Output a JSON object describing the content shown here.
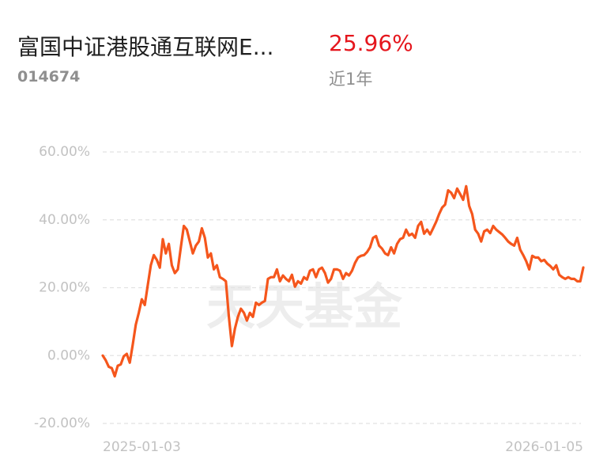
{
  "header": {
    "fund_name": "富国中证港股通互联网E...",
    "return_text": "25.96%",
    "fund_code": "014674",
    "period": "近1年"
  },
  "chart_data": {
    "type": "line",
    "watermark": "天天基金",
    "categories": [
      "2025-01-03",
      null,
      null,
      null,
      null,
      null,
      null,
      null,
      null,
      null,
      null,
      null,
      null,
      null,
      null,
      null,
      null,
      null,
      null,
      null,
      null,
      null,
      null,
      null,
      null,
      null,
      null,
      null,
      null,
      null,
      null,
      null,
      null,
      null,
      null,
      null,
      null,
      null,
      null,
      null,
      null,
      null,
      null,
      null,
      null,
      null,
      null,
      null,
      null,
      null,
      null,
      null,
      null,
      null,
      null,
      null,
      null,
      null,
      null,
      null,
      null,
      null,
      null,
      null,
      null,
      null,
      null,
      null,
      null,
      null,
      null,
      null,
      null,
      null,
      null,
      null,
      null,
      null,
      null,
      null,
      null,
      null,
      null,
      null,
      null,
      null,
      null,
      null,
      null,
      null,
      null,
      null,
      null,
      null,
      null,
      null,
      null,
      null,
      null,
      null,
      null,
      null,
      null,
      null,
      null,
      null,
      null,
      null,
      null,
      null,
      null,
      null,
      null,
      null,
      null,
      null,
      null,
      null,
      null,
      null,
      null,
      null,
      null,
      null,
      null,
      null,
      null,
      null,
      null,
      null,
      null,
      null,
      null,
      null,
      null,
      null,
      null,
      null,
      null,
      null,
      null,
      null,
      null,
      null,
      null,
      null,
      null,
      null,
      null,
      null,
      null,
      null,
      null,
      null,
      null,
      null,
      null,
      null,
      null,
      null,
      "2026-01-05"
    ],
    "series": [
      {
        "color": "#f5561c",
        "values": [
          0,
          -1.4,
          -3.3,
          -3.7,
          -6.1,
          -3.0,
          -2.6,
          -0.2,
          0.5,
          -2.1,
          3.3,
          9.1,
          12.6,
          16.6,
          14.9,
          20.8,
          26.6,
          29.6,
          28.2,
          25.9,
          34.3,
          30.1,
          32.9,
          26.6,
          24.3,
          25.4,
          31.9,
          38.2,
          37.1,
          33.6,
          30.1,
          32.4,
          33.6,
          37.5,
          34.7,
          28.9,
          30.1,
          25.4,
          26.6,
          23.1,
          22.6,
          21.9,
          11.4,
          2.8,
          7.9,
          11.4,
          13.8,
          12.6,
          10.3,
          12.6,
          11.4,
          15.6,
          14.9,
          15.6,
          16.1,
          22.6,
          23.1,
          23.1,
          25.4,
          21.9,
          23.6,
          22.6,
          21.9,
          23.8,
          20.3,
          21.9,
          21.2,
          23.1,
          22.4,
          25.0,
          25.4,
          23.1,
          25.4,
          25.9,
          24.3,
          21.5,
          22.6,
          25.4,
          25.4,
          25.0,
          22.6,
          24.3,
          23.6,
          25.0,
          27.3,
          28.9,
          29.4,
          29.6,
          30.5,
          31.9,
          34.7,
          35.2,
          32.4,
          31.5,
          30.1,
          29.6,
          31.9,
          30.1,
          32.9,
          34.3,
          34.7,
          37.1,
          35.4,
          35.9,
          34.7,
          38.2,
          39.4,
          35.9,
          37.1,
          35.7,
          37.5,
          39.4,
          41.7,
          43.6,
          44.5,
          48.7,
          48.0,
          46.4,
          49.2,
          47.6,
          45.9,
          49.9,
          44.1,
          41.7,
          37.1,
          35.9,
          33.6,
          36.6,
          37.1,
          36.1,
          38.2,
          37.1,
          36.4,
          35.7,
          34.7,
          33.6,
          32.9,
          32.4,
          34.7,
          31.2,
          29.6,
          27.8,
          25.4,
          29.4,
          28.9,
          28.9,
          27.8,
          28.2,
          27.1,
          26.4,
          25.4,
          26.6,
          23.8,
          23.1,
          22.6,
          23.1,
          22.6,
          22.6,
          21.9,
          21.9,
          25.96
        ]
      }
    ],
    "ylim": [
      -20,
      60
    ],
    "yticks": [
      {
        "value": 60,
        "label": "60.00%"
      },
      {
        "value": 40,
        "label": "40.00%"
      },
      {
        "value": 20,
        "label": "20.00%"
      },
      {
        "value": 0,
        "label": "0.00%"
      },
      {
        "value": -20,
        "label": "-20.00%"
      }
    ],
    "grid": true
  }
}
